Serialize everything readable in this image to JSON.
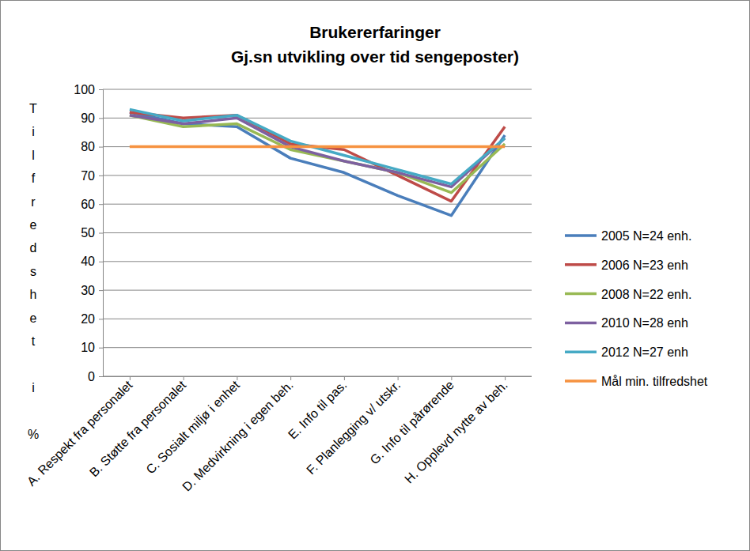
{
  "chart_data": {
    "type": "line",
    "title": "Brukererfaringer",
    "subtitle": "Gj.sn utvikling over tid sengeposter)",
    "y_label": "Tilfredshet i %",
    "categories": [
      "A. Respekt fra personalet",
      "B. Støtte fra personalet",
      "C. Sosialt miljø i enhet",
      "D. Medvirkning i egen beh.",
      "E. Info til pas.",
      "F. Planlegging v/ utskr.",
      "G. Info til pårørende",
      "H. Opplevd nytte av beh."
    ],
    "series": [
      {
        "name": "2005 N=24 enh.",
        "color": "#4a7ebb",
        "values": [
          92,
          88,
          87,
          76,
          71,
          63,
          56,
          84
        ]
      },
      {
        "name": "2006 N=23 enh",
        "color": "#be4b48",
        "values": [
          92,
          90,
          91,
          81,
          79,
          70,
          61,
          87
        ]
      },
      {
        "name": "2008 N=22 enh.",
        "color": "#98b954",
        "values": [
          91,
          87,
          88,
          79,
          75,
          71,
          64,
          81
        ]
      },
      {
        "name": "2010 N=28 enh",
        "color": "#7d60a0",
        "values": [
          91,
          88,
          90,
          80,
          75,
          71,
          66,
          83
        ]
      },
      {
        "name": "2012 N=27 enh",
        "color": "#46aac5",
        "values": [
          93,
          89,
          91,
          82,
          77,
          72,
          67,
          83
        ]
      },
      {
        "name": "Mål min. tilfredshet",
        "color": "#f69240",
        "values": [
          80,
          80,
          80,
          80,
          80,
          80,
          80,
          80
        ]
      }
    ],
    "ylim": [
      0,
      100
    ],
    "yticks": [
      0,
      10,
      20,
      30,
      40,
      50,
      60,
      70,
      80,
      90,
      100
    ],
    "grid": true,
    "legend": "right"
  }
}
